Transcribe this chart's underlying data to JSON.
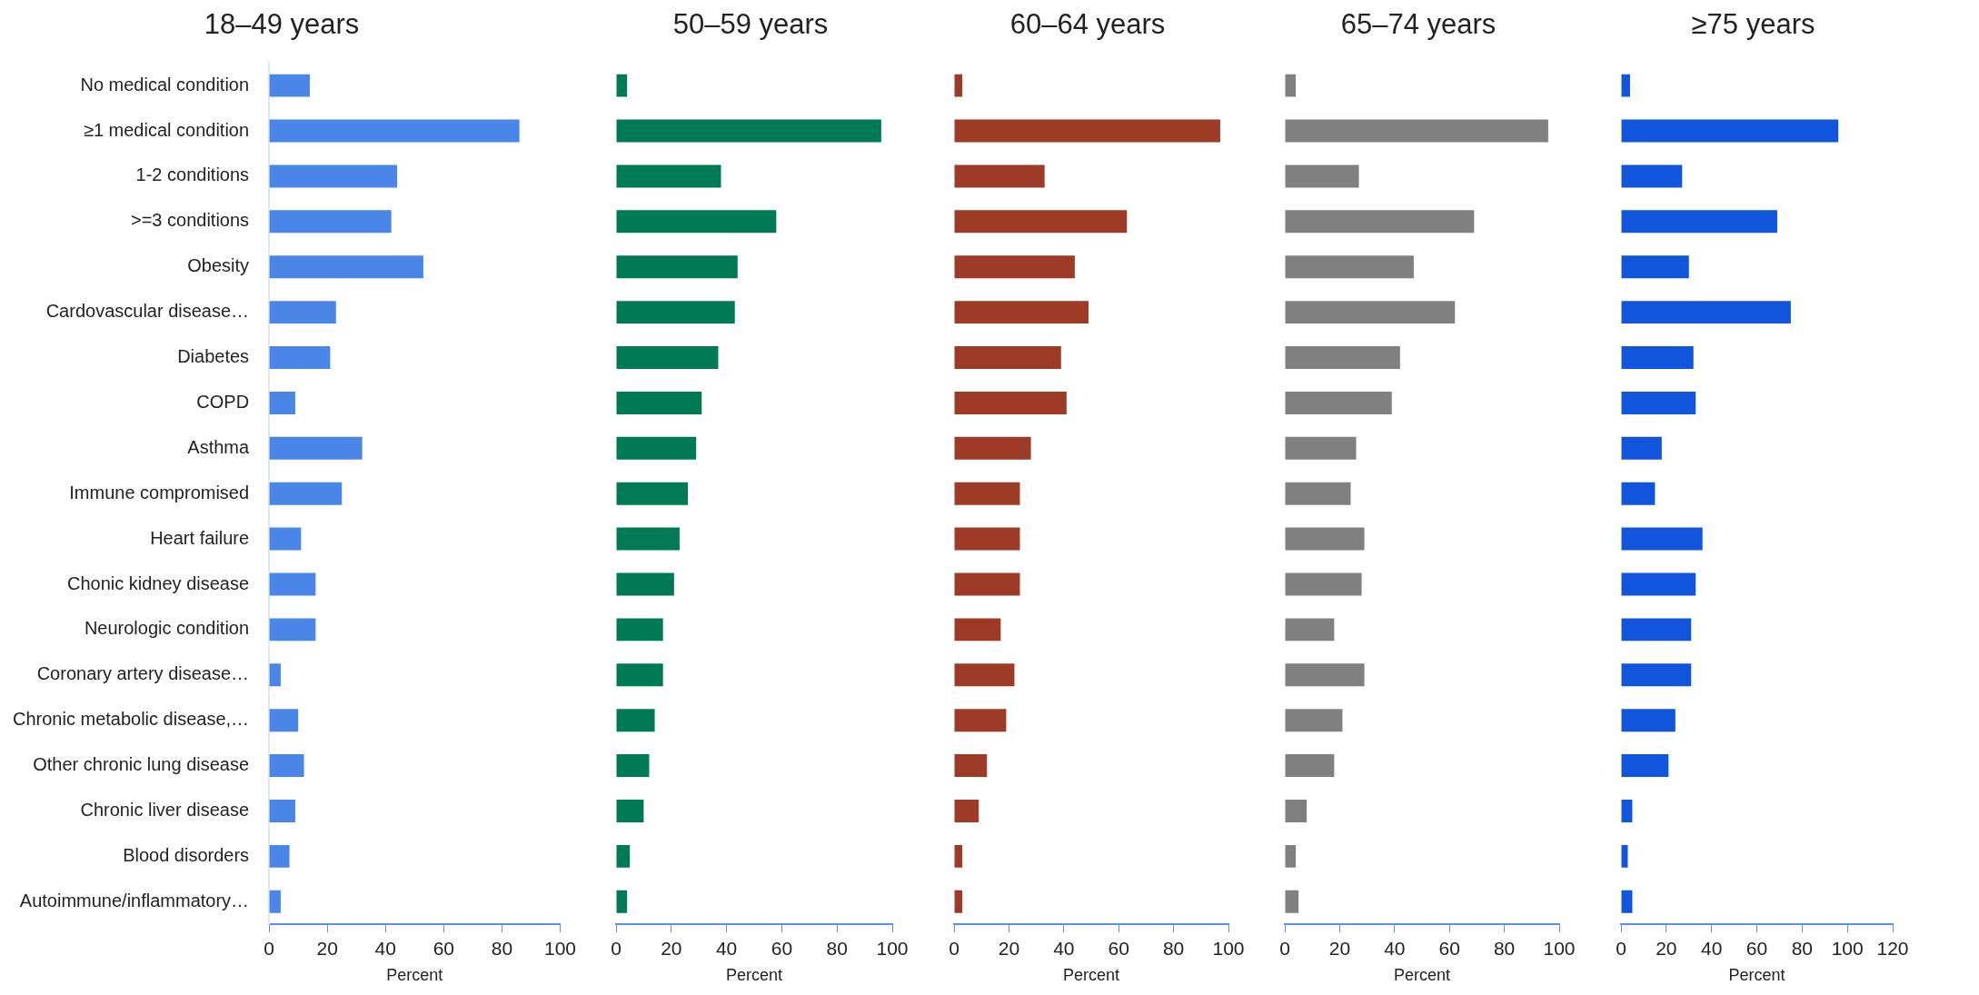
{
  "chart_data": [
    {
      "type": "bar",
      "orientation": "horizontal",
      "title": "18–49 years",
      "xlabel": "Percent",
      "categories": [
        "No medical condition",
        "≥1 medical condition",
        "1-2 conditions",
        ">=3 conditions",
        "Obesity",
        "Cardovascular disease…",
        "Diabetes",
        "COPD",
        "Asthma",
        "Immune compromised",
        "Heart failure",
        "Chonic kidney disease",
        "Neurologic condition",
        "Coronary artery disease…",
        "Chronic metabolic disease,…",
        "Other chronic lung disease",
        "Chronic liver disease",
        "Blood disorders",
        "Autoimmune/inflammatory…"
      ],
      "values": [
        14,
        86,
        44,
        42,
        53,
        23,
        21,
        9,
        32,
        25,
        11,
        16,
        16,
        4,
        10,
        12,
        9,
        7,
        4
      ],
      "color": "#4a86e8",
      "xlim": [
        0,
        100
      ],
      "xticks": [
        0,
        20,
        40,
        60,
        80,
        100
      ]
    },
    {
      "type": "bar",
      "orientation": "horizontal",
      "title": "50–59 years",
      "xlabel": "Percent",
      "tick_labels": "x",
      "categories": [
        null,
        null,
        null,
        null,
        null,
        null,
        null,
        null,
        null,
        null,
        null,
        null,
        null,
        null,
        null,
        null,
        null,
        null,
        null
      ],
      "values": [
        4,
        96,
        38,
        58,
        44,
        43,
        37,
        31,
        29,
        26,
        23,
        21,
        17,
        17,
        14,
        12,
        10,
        5,
        4
      ],
      "color": "#007a55",
      "xlim": [
        0,
        100
      ],
      "xticks": [
        0,
        20,
        40,
        60,
        80,
        100
      ]
    },
    {
      "type": "bar",
      "orientation": "horizontal",
      "title": "60–64 years",
      "xlabel": "Percent",
      "tick_labels": "x",
      "categories": [
        null,
        null,
        null,
        null,
        null,
        null,
        null,
        null,
        null,
        null,
        null,
        null,
        null,
        null,
        null,
        null,
        null,
        null,
        null
      ],
      "values": [
        3,
        97,
        33,
        63,
        44,
        49,
        39,
        41,
        28,
        24,
        24,
        24,
        17,
        22,
        19,
        12,
        9,
        3,
        3
      ],
      "color": "#9e3b27",
      "xlim": [
        0,
        100
      ],
      "xticks": [
        0,
        20,
        40,
        60,
        80,
        100
      ]
    },
    {
      "type": "bar",
      "orientation": "horizontal",
      "title": "65–74 years",
      "xlabel": "Percent",
      "tick_labels": "x",
      "categories": [
        null,
        null,
        null,
        null,
        null,
        null,
        null,
        null,
        null,
        null,
        null,
        null,
        null,
        null,
        null,
        null,
        null,
        null,
        null
      ],
      "values": [
        4,
        96,
        27,
        69,
        47,
        62,
        42,
        39,
        26,
        24,
        29,
        28,
        18,
        29,
        21,
        18,
        8,
        4,
        5
      ],
      "color": "#808080",
      "xlim": [
        0,
        100
      ],
      "xticks": [
        0,
        20,
        40,
        60,
        80,
        100
      ]
    },
    {
      "type": "bar",
      "orientation": "horizontal",
      "title": "≥75 years",
      "xlabel": "Percent",
      "tick_labels": "x",
      "categories": [
        null,
        null,
        null,
        null,
        null,
        null,
        null,
        null,
        null,
        null,
        null,
        null,
        null,
        null,
        null,
        null,
        null,
        null,
        null
      ],
      "values": [
        4,
        96,
        27,
        69,
        30,
        75,
        32,
        33,
        18,
        15,
        36,
        33,
        31,
        31,
        24,
        21,
        5,
        3,
        5
      ],
      "color": "#1155dd",
      "xlim": [
        0,
        120
      ],
      "xticks": [
        0,
        20,
        40,
        60,
        80,
        100,
        120
      ]
    }
  ]
}
